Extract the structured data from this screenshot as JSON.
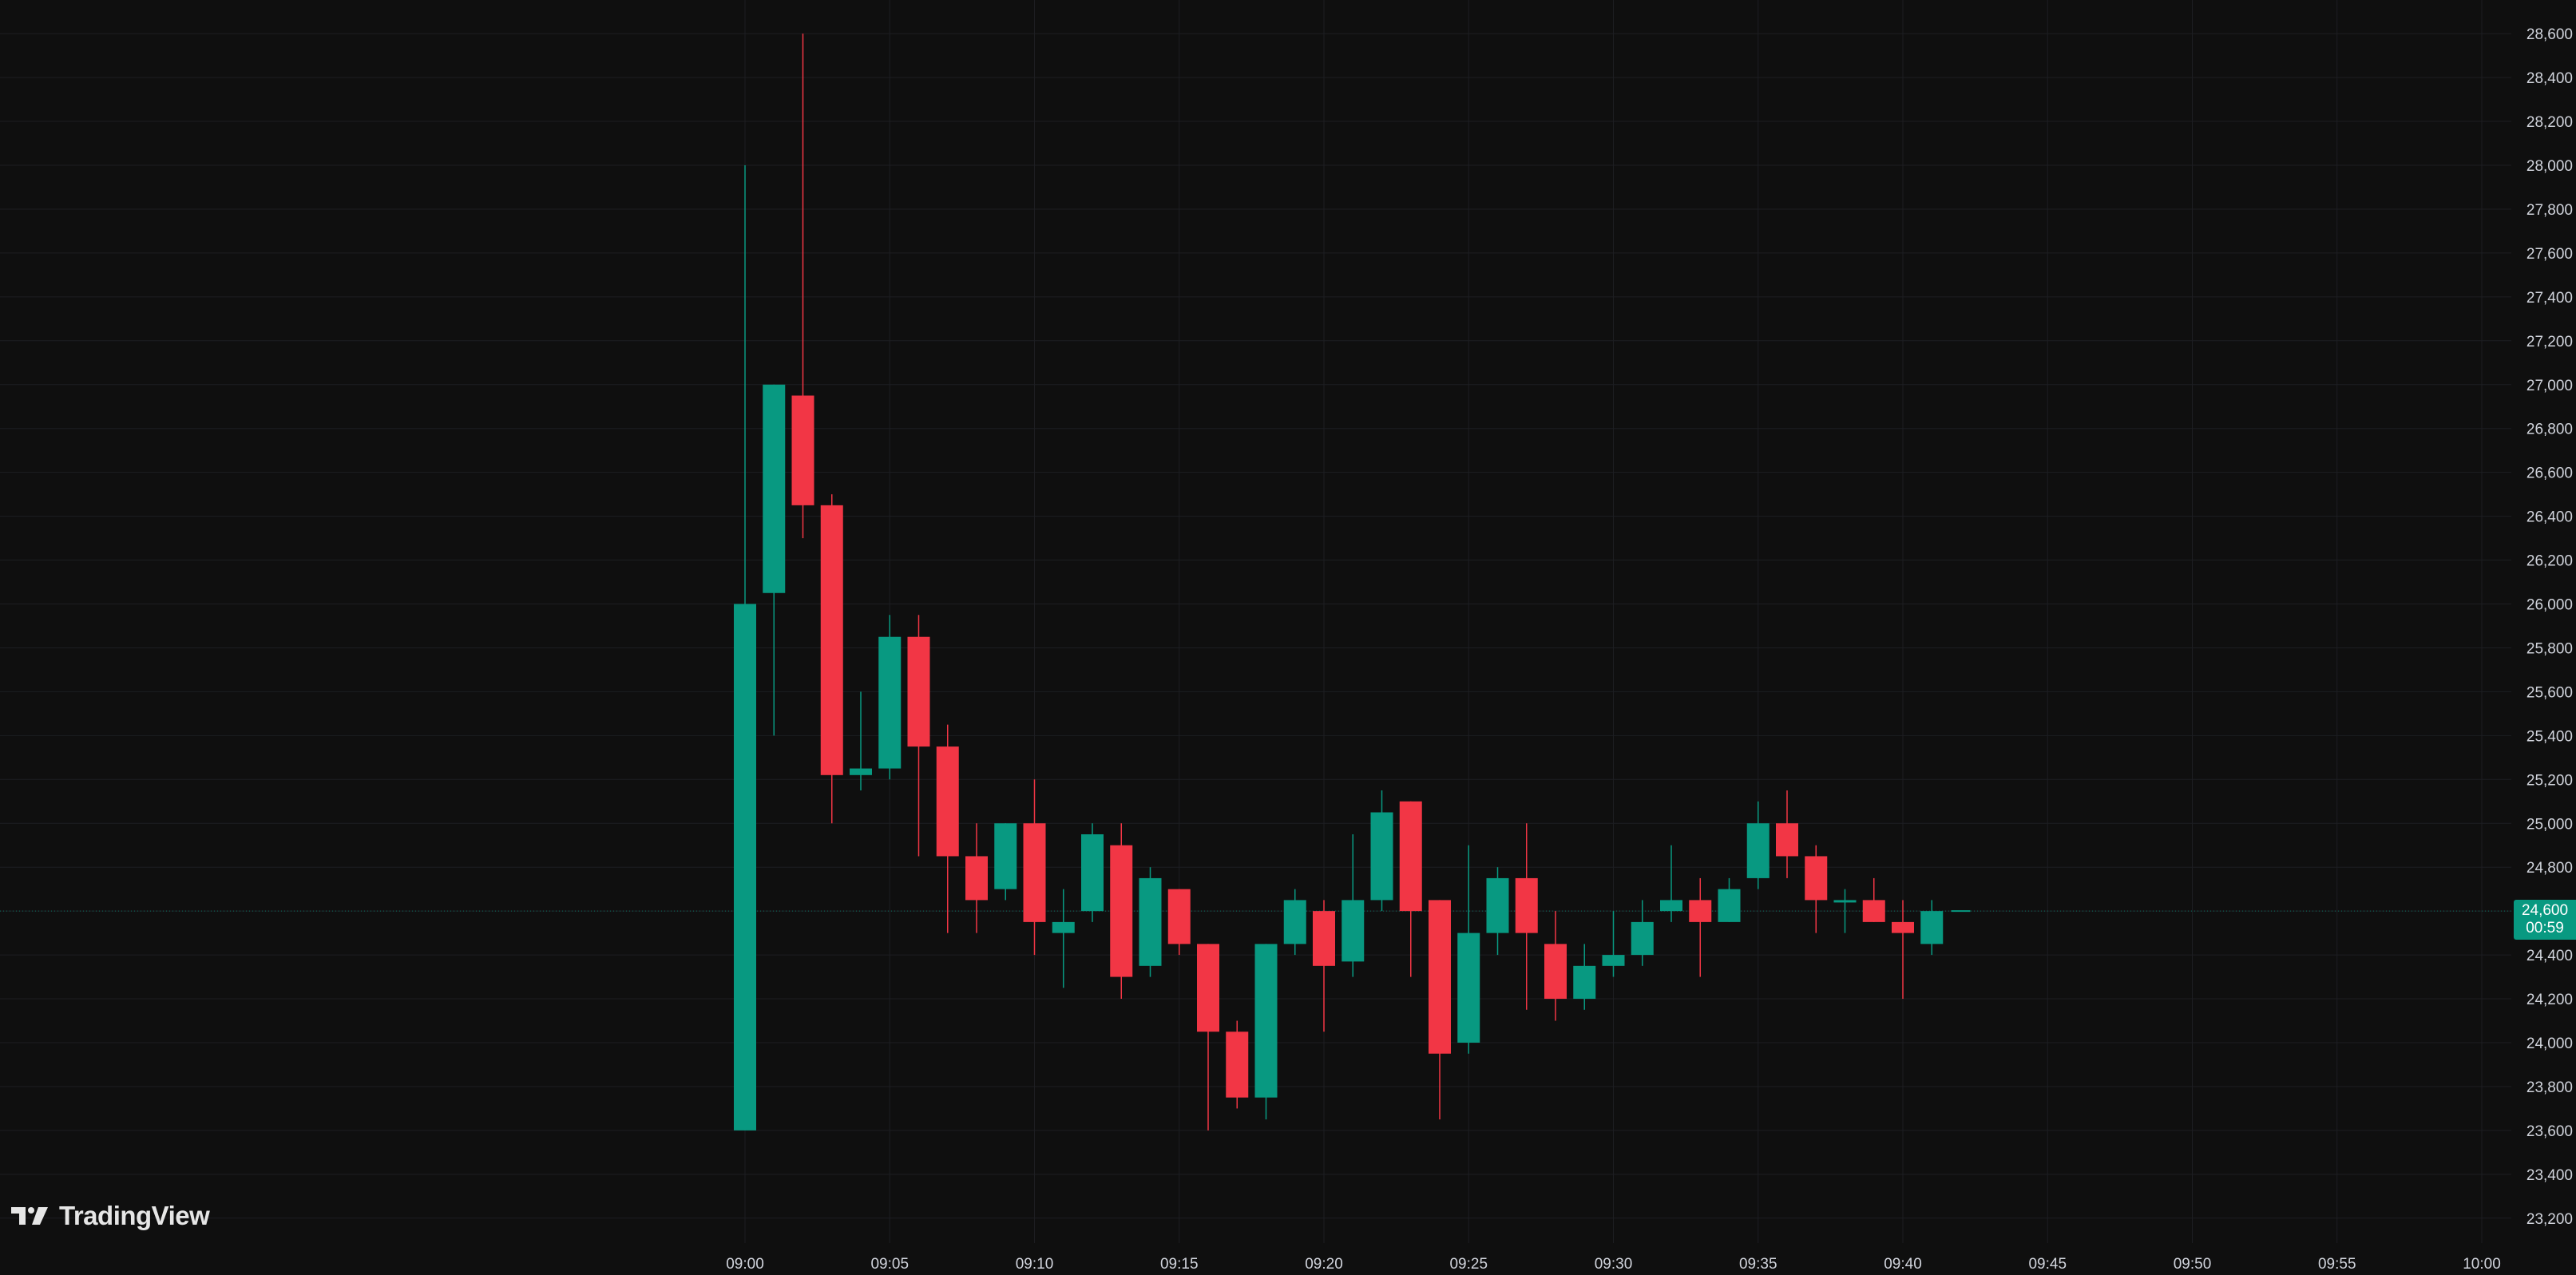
{
  "brand": {
    "name": "TradingView",
    "icon": "tradingview-logo-icon"
  },
  "colors": {
    "background": "#0f0f0f",
    "grid": "#1d1e22",
    "up": "#089981",
    "down": "#f23645",
    "axis_text": "#d1d4dc"
  },
  "last_price": {
    "price_label": "24,600",
    "countdown_label": "00:59"
  },
  "settings_icon": "settings-icon",
  "chart_data": {
    "type": "candlestick",
    "interval": "1 minute",
    "title": "",
    "xlabel": "",
    "ylabel": "",
    "ylim": [
      23100,
      28650
    ],
    "xlim": [
      "08:59",
      "10:01"
    ],
    "grid": true,
    "y_ticks": [
      23200,
      23400,
      23600,
      23800,
      24000,
      24200,
      24400,
      24600,
      24800,
      25000,
      25200,
      25400,
      25600,
      25800,
      26000,
      26200,
      26400,
      26600,
      26800,
      27000,
      27200,
      27400,
      27600,
      27800,
      28000,
      28200,
      28400,
      28600
    ],
    "y_tick_labels": [
      "23,200",
      "23,400",
      "23,600",
      "23,800",
      "24,000",
      "24,200",
      "24,400",
      "24,600",
      "24,800",
      "25,000",
      "25,200",
      "25,400",
      "25,600",
      "25,800",
      "26,000",
      "26,200",
      "26,400",
      "26,600",
      "26,800",
      "27,000",
      "27,200",
      "27,400",
      "27,600",
      "27,800",
      "28,000",
      "28,200",
      "28,400",
      "28,600"
    ],
    "x_ticks": [
      "09:00",
      "09:05",
      "09:10",
      "09:15",
      "09:20",
      "09:25",
      "09:30",
      "09:35",
      "09:40",
      "09:45",
      "09:50",
      "09:55",
      "10:00"
    ],
    "candles": [
      {
        "time": "09:00",
        "open": 23600,
        "high": 28000,
        "low": 23600,
        "close": 26000
      },
      {
        "time": "09:01",
        "open": 26050,
        "high": 27000,
        "low": 25400,
        "close": 27000
      },
      {
        "time": "09:02",
        "open": 26950,
        "high": 28600,
        "low": 26300,
        "close": 26450
      },
      {
        "time": "09:03",
        "open": 26450,
        "high": 26500,
        "low": 25000,
        "close": 25220
      },
      {
        "time": "09:04",
        "open": 25220,
        "high": 25600,
        "low": 25150,
        "close": 25250
      },
      {
        "time": "09:05",
        "open": 25250,
        "high": 25950,
        "low": 25200,
        "close": 25850
      },
      {
        "time": "09:06",
        "open": 25850,
        "high": 25950,
        "low": 24850,
        "close": 25350
      },
      {
        "time": "09:07",
        "open": 25350,
        "high": 25450,
        "low": 24500,
        "close": 24850
      },
      {
        "time": "09:08",
        "open": 24850,
        "high": 25000,
        "low": 24500,
        "close": 24650
      },
      {
        "time": "09:09",
        "open": 24700,
        "high": 25000,
        "low": 24650,
        "close": 25000
      },
      {
        "time": "09:10",
        "open": 25000,
        "high": 25200,
        "low": 24400,
        "close": 24550
      },
      {
        "time": "09:11",
        "open": 24500,
        "high": 24700,
        "low": 24250,
        "close": 24550
      },
      {
        "time": "09:12",
        "open": 24600,
        "high": 25000,
        "low": 24550,
        "close": 24950
      },
      {
        "time": "09:13",
        "open": 24900,
        "high": 25000,
        "low": 24200,
        "close": 24300
      },
      {
        "time": "09:14",
        "open": 24350,
        "high": 24800,
        "low": 24300,
        "close": 24750
      },
      {
        "time": "09:15",
        "open": 24700,
        "high": 24700,
        "low": 24400,
        "close": 24450
      },
      {
        "time": "09:16",
        "open": 24450,
        "high": 24450,
        "low": 23600,
        "close": 24050
      },
      {
        "time": "09:17",
        "open": 24050,
        "high": 24100,
        "low": 23700,
        "close": 23750
      },
      {
        "time": "09:18",
        "open": 23750,
        "high": 24450,
        "low": 23650,
        "close": 24450
      },
      {
        "time": "09:19",
        "open": 24450,
        "high": 24700,
        "low": 24400,
        "close": 24650
      },
      {
        "time": "09:20",
        "open": 24600,
        "high": 24650,
        "low": 24050,
        "close": 24350
      },
      {
        "time": "09:21",
        "open": 24370,
        "high": 24950,
        "low": 24300,
        "close": 24650
      },
      {
        "time": "09:22",
        "open": 24650,
        "high": 25150,
        "low": 24600,
        "close": 25050
      },
      {
        "time": "09:23",
        "open": 25100,
        "high": 25100,
        "low": 24300,
        "close": 24600
      },
      {
        "time": "09:24",
        "open": 24650,
        "high": 24650,
        "low": 23650,
        "close": 23950
      },
      {
        "time": "09:25",
        "open": 24000,
        "high": 24900,
        "low": 23950,
        "close": 24500
      },
      {
        "time": "09:26",
        "open": 24500,
        "high": 24800,
        "low": 24400,
        "close": 24750
      },
      {
        "time": "09:27",
        "open": 24750,
        "high": 25000,
        "low": 24150,
        "close": 24500
      },
      {
        "time": "09:28",
        "open": 24450,
        "high": 24600,
        "low": 24100,
        "close": 24200
      },
      {
        "time": "09:29",
        "open": 24200,
        "high": 24450,
        "low": 24150,
        "close": 24350
      },
      {
        "time": "09:30",
        "open": 24350,
        "high": 24600,
        "low": 24300,
        "close": 24400
      },
      {
        "time": "09:31",
        "open": 24400,
        "high": 24650,
        "low": 24350,
        "close": 24550
      },
      {
        "time": "09:32",
        "open": 24600,
        "high": 24900,
        "low": 24550,
        "close": 24650
      },
      {
        "time": "09:33",
        "open": 24650,
        "high": 24750,
        "low": 24300,
        "close": 24550
      },
      {
        "time": "09:34",
        "open": 24550,
        "high": 24750,
        "low": 24550,
        "close": 24700
      },
      {
        "time": "09:35",
        "open": 24750,
        "high": 25100,
        "low": 24700,
        "close": 25000
      },
      {
        "time": "09:36",
        "open": 25000,
        "high": 25150,
        "low": 24750,
        "close": 24850
      },
      {
        "time": "09:37",
        "open": 24850,
        "high": 24900,
        "low": 24500,
        "close": 24650
      },
      {
        "time": "09:38",
        "open": 24650,
        "high": 24700,
        "low": 24500,
        "close": 24650
      },
      {
        "time": "09:39",
        "open": 24650,
        "high": 24750,
        "low": 24550,
        "close": 24550
      },
      {
        "time": "09:40",
        "open": 24550,
        "high": 24650,
        "low": 24200,
        "close": 24500
      },
      {
        "time": "09:41",
        "open": 24450,
        "high": 24650,
        "low": 24400,
        "close": 24600
      }
    ]
  }
}
